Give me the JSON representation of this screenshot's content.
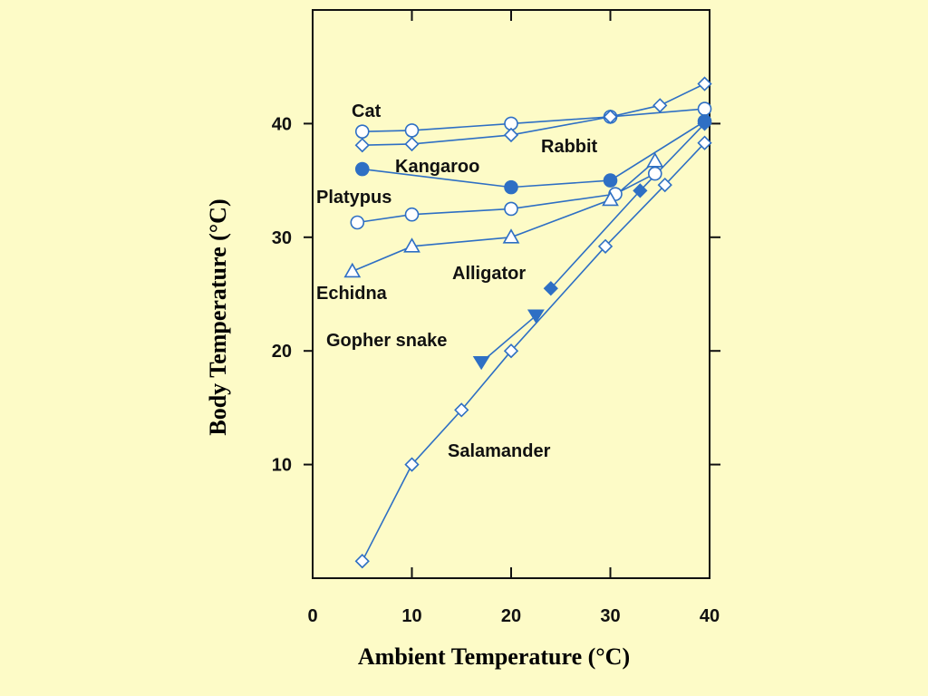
{
  "chart_data": {
    "type": "line",
    "title": "",
    "xlabel": "Ambient Temperature (°C)",
    "ylabel": "Body Temperature (°C)",
    "xlim": [
      0,
      40
    ],
    "ylim": [
      0,
      50
    ],
    "x_ticks": [
      "0",
      "10",
      "20",
      "30",
      "40"
    ],
    "y_ticks": [
      "10",
      "20",
      "30",
      "40"
    ],
    "grid": false,
    "line_color": "#2e6fc4",
    "series": [
      {
        "name": "Cat",
        "marker": "circle-open",
        "x": [
          5,
          10,
          20,
          30,
          39.5
        ],
        "y": [
          39.3,
          39.4,
          40,
          40.6,
          41.3
        ]
      },
      {
        "name": "Rabbit",
        "marker": "diamond-open",
        "x": [
          5,
          10,
          20,
          30,
          35,
          39.5
        ],
        "y": [
          38.1,
          38.2,
          39,
          40.6,
          41.6,
          43.5
        ]
      },
      {
        "name": "Kangaroo",
        "marker": "circle-filled",
        "x": [
          5,
          20,
          30,
          39.5
        ],
        "y": [
          36,
          34.4,
          35,
          40.2
        ]
      },
      {
        "name": "Platypus",
        "marker": "circle-open",
        "x": [
          4.5,
          10,
          20,
          30.5,
          34.5
        ],
        "y": [
          31.3,
          32,
          32.5,
          33.8,
          35.6
        ]
      },
      {
        "name": "Echidna",
        "marker": "triangle-open",
        "x": [
          4,
          10,
          20,
          30,
          34.5
        ],
        "y": [
          27,
          29.2,
          30,
          33.3,
          36.7
        ]
      },
      {
        "name": "Alligator",
        "marker": "diamond-filled",
        "x": [
          24,
          33,
          39.5
        ],
        "y": [
          25.5,
          34.1,
          40
        ]
      },
      {
        "name": "Gopher snake",
        "marker": "triangle-down-filled",
        "x": [
          17,
          22.5
        ],
        "y": [
          19,
          23.1
        ]
      },
      {
        "name": "Salamander",
        "marker": "diamond-open",
        "x": [
          5,
          10,
          15,
          20,
          29.5,
          35.5,
          39.5
        ],
        "y": [
          1.5,
          10,
          14.8,
          20,
          29.2,
          34.6,
          38.3
        ]
      }
    ]
  }
}
